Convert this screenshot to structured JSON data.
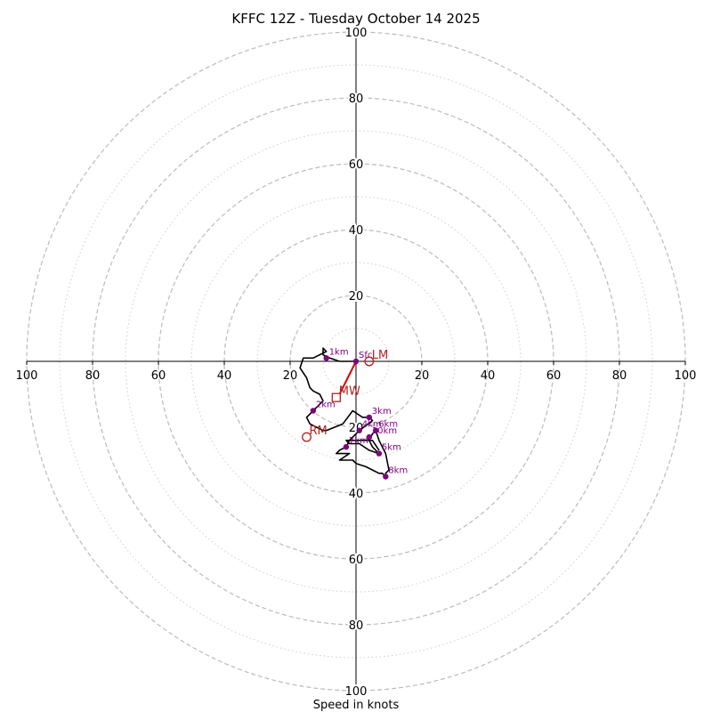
{
  "chart_data": {
    "type": "hodograph",
    "title": "KFFC 12Z - Tuesday October 14 2025",
    "xlabel": "Speed in knots",
    "unit": "knots",
    "max_speed": 100,
    "ring_major": [
      20,
      40,
      60,
      80,
      100
    ],
    "ring_minor": [
      10,
      30,
      50,
      70,
      90
    ],
    "tick_labels": {
      "top": [
        "20",
        "40",
        "60",
        "80",
        "100"
      ],
      "bottom": [
        "20",
        "40",
        "60",
        "80",
        "100"
      ],
      "left": [
        "100",
        "80",
        "60",
        "40",
        "20"
      ],
      "right": [
        "20",
        "40",
        "60",
        "80",
        "100"
      ]
    },
    "trace_uv": [
      [
        0,
        0
      ],
      [
        -2,
        0
      ],
      [
        -5,
        0
      ],
      [
        -8,
        1
      ],
      [
        -10,
        2
      ],
      [
        -10,
        4
      ],
      [
        -9,
        3
      ],
      [
        -13,
        1
      ],
      [
        -16,
        1
      ],
      [
        -17,
        -2
      ],
      [
        -15,
        -5
      ],
      [
        -14,
        -8
      ],
      [
        -13,
        -9
      ],
      [
        -11,
        -10
      ],
      [
        -10,
        -12
      ],
      [
        -13,
        -15
      ],
      [
        -15,
        -17
      ],
      [
        -14,
        -19
      ],
      [
        -12,
        -20
      ],
      [
        -10,
        -21
      ],
      [
        -9,
        -21
      ],
      [
        -4,
        -19
      ],
      [
        -1,
        -15
      ],
      [
        2,
        -17
      ],
      [
        4,
        -17
      ],
      [
        5,
        -18
      ],
      [
        1,
        -21
      ],
      [
        0,
        -22
      ],
      [
        -1,
        -23
      ],
      [
        -2,
        -24
      ],
      [
        -3,
        -26
      ],
      [
        -5,
        -27
      ],
      [
        -6,
        -28
      ],
      [
        -4,
        -28
      ],
      [
        -2,
        -28
      ],
      [
        -5,
        -30
      ],
      [
        -1,
        -30
      ],
      [
        0,
        -31
      ],
      [
        3,
        -32
      ],
      [
        5,
        -33
      ],
      [
        7,
        -34
      ],
      [
        8,
        -34
      ],
      [
        9,
        -35
      ],
      [
        9,
        -34
      ],
      [
        10,
        -33
      ],
      [
        9,
        -28
      ],
      [
        8,
        -26
      ],
      [
        7,
        -24
      ],
      [
        6,
        -21
      ],
      [
        5,
        -22
      ],
      [
        4,
        -24
      ],
      [
        5,
        -26
      ],
      [
        7,
        -28
      ],
      [
        4,
        -27
      ],
      [
        1,
        -25
      ],
      [
        -2,
        -25
      ],
      [
        -3,
        -24
      ],
      [
        -1,
        -24
      ],
      [
        2,
        -24
      ],
      [
        5,
        -24
      ],
      [
        7,
        -27
      ]
    ],
    "height_points": [
      {
        "label": "Sfc",
        "u": 0,
        "v": 0
      },
      {
        "label": "1km",
        "u": -9,
        "v": 1
      },
      {
        "label": "2km",
        "u": -13,
        "v": -15
      },
      {
        "label": "3km",
        "u": 4,
        "v": -17
      },
      {
        "label": "4km",
        "u": 1,
        "v": -21
      },
      {
        "label": "5km",
        "u": 7,
        "v": -28
      },
      {
        "label": "6km",
        "u": 6,
        "v": -21
      },
      {
        "label": "7km",
        "u": -3,
        "v": -26
      },
      {
        "label": "8km",
        "u": 9,
        "v": -35
      },
      {
        "label": "10km",
        "u": 4,
        "v": -23
      }
    ],
    "storm_motion": [
      {
        "label": "LM",
        "u": 4,
        "v": 0,
        "marker": "circle"
      },
      {
        "label": "MW",
        "u": -6,
        "v": -11,
        "marker": "square"
      },
      {
        "label": "RM",
        "u": -15,
        "v": -23,
        "marker": "circle"
      }
    ],
    "shear_vector": {
      "from_u": 0,
      "to_u": -5,
      "from_v": 0,
      "to_v": -10
    },
    "colors": {
      "trace": "#000000",
      "height_points": "#800080",
      "storm_motion": "#b22222",
      "shear_vector": "#dd0000",
      "ring_major": "#bbbbbb",
      "ring_minor": "#cccccc",
      "axes": "#000000"
    }
  }
}
